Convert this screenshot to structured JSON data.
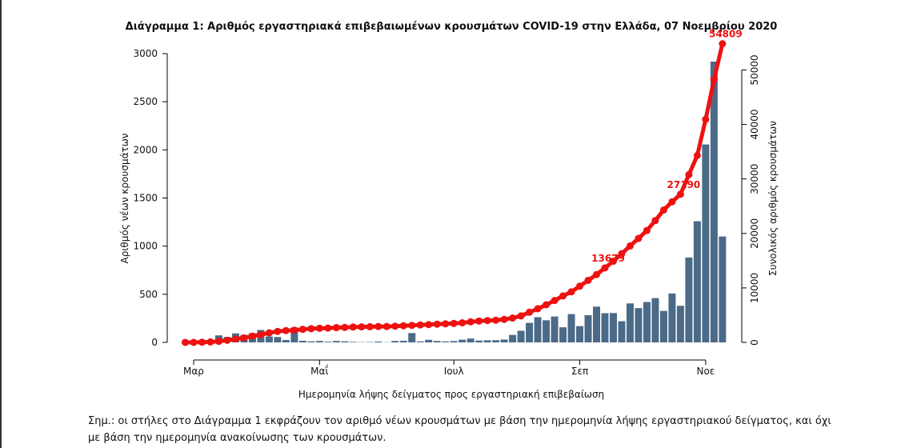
{
  "chart_data": {
    "type": "bar_line",
    "title": "Διάγραμμα 1: Αριθμός εργαστηριακά επιβεβαιωμένων κρουσμάτων COVID-19 στην Ελλάδα, 07 Νοεμβρίου 2020",
    "x_label": "Ημερομηνία λήψης δείγματος προς εργαστηριακή επιβεβαίωση",
    "y_label": "Αριθμός νέων κρουσμάτων",
    "y2_label": "Συνολικός αριθμός κρουσμάτων",
    "categories": [
      null,
      "Μαρ",
      null,
      null,
      null,
      null,
      null,
      null,
      null,
      null,
      null,
      null,
      null,
      null,
      null,
      null,
      "Μαΐ",
      null,
      null,
      null,
      null,
      null,
      null,
      null,
      null,
      null,
      null,
      null,
      null,
      null,
      null,
      null,
      "Ιουλ",
      null,
      null,
      null,
      null,
      null,
      null,
      null,
      null,
      null,
      null,
      null,
      null,
      null,
      null,
      "Σεπ",
      null,
      null,
      null,
      null,
      null,
      null,
      null,
      null,
      null,
      null,
      null,
      null,
      null,
      null,
      "Νοε",
      null,
      null
    ],
    "series": [
      {
        "type": "bar",
        "color": "#4b6a88",
        "values": [
          1,
          2,
          10,
          11,
          73,
          56,
          94,
          78,
          95,
          129,
          62,
          56,
          25,
          155,
          17,
          11,
          15,
          7,
          15,
          11,
          6,
          3,
          4,
          9,
          2,
          15,
          17,
          97,
          10,
          27,
          15,
          10,
          14,
          28,
          40,
          19,
          22,
          23,
          30,
          78,
          121,
          203,
          262,
          230,
          269,
          157,
          294,
          169,
          283,
          372,
          303,
          305,
          220,
          405,
          356,
          420,
          460,
          327,
          508,
          380,
          882,
          1259,
          2056,
          2917,
          1100
        ]
      },
      {
        "type": "line",
        "axis": "y2",
        "color": "#ee1111",
        "values": [
          1,
          7,
          31,
          84,
          190,
          387,
          624,
          821,
          1156,
          1415,
          1755,
          2011,
          2170,
          2245,
          2401,
          2517,
          2591,
          2632,
          2710,
          2744,
          2819,
          2850,
          2878,
          2909,
          2918,
          2980,
          3049,
          3121,
          3203,
          3266,
          3343,
          3409,
          3486,
          3590,
          3772,
          3910,
          4007,
          4077,
          4227,
          4477,
          4855,
          5535,
          6177,
          6906,
          7684,
          8530,
          9280,
          10317,
          11386,
          12452,
          13679,
          14900,
          16286,
          17707,
          19079,
          20541,
          22358,
          24302,
          25802,
          27190,
          30782,
          34299,
          40929,
          48281,
          54809
        ]
      }
    ],
    "labeled_points": [
      50,
      59,
      64
    ],
    "ylim": [
      0,
      3000
    ],
    "yticks": [
      0,
      500,
      1000,
      1500,
      2000,
      2500,
      3000
    ],
    "y2lim": [
      0,
      53000
    ],
    "y2ticks": [
      0,
      10000,
      20000,
      30000,
      40000,
      50000
    ],
    "grid": false
  },
  "note": [
    "Σημ.:  οι στήλες στο Διάγραμμα 1 εκφράζουν τον αριθμό νέων κρουσμάτων με βάση την ημερομηνία λήψης εργαστηριακού δείγματος, και όχι",
    "με βάση την ημερομηνία ανακοίνωσης των κρουσμάτων."
  ]
}
